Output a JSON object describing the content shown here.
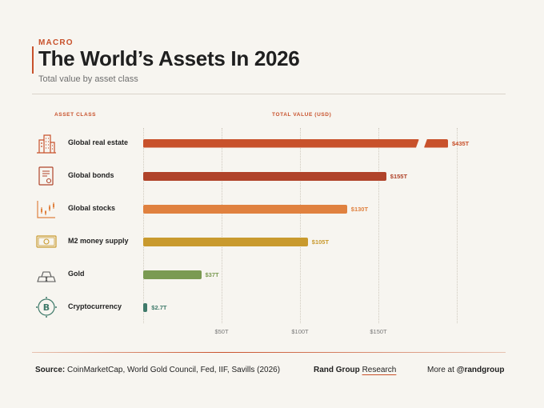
{
  "header": {
    "kicker": "MACRO",
    "title": "The World’s Assets In 2026",
    "subtitle": "Total value by asset class"
  },
  "columns": {
    "asset_class": "ASSET CLASS",
    "total_value": "TOTAL VALUE (USD)"
  },
  "colors": {
    "accent": "#c8512b",
    "text": "#1f1f1f"
  },
  "chart_data": {
    "type": "bar",
    "orientation": "horizontal",
    "title": "The World’s Assets In 2026",
    "subtitle": "Total value by asset class",
    "xlabel": "TOTAL VALUE (USD)",
    "ylabel": "ASSET CLASS",
    "xlim": [
      0,
      200
    ],
    "axis_break": true,
    "grid": true,
    "categories": [
      "Global real estate",
      "Global bonds",
      "Global stocks",
      "M2 money supply",
      "Gold",
      "Cryptocurrency"
    ],
    "values": [
      435,
      155,
      130,
      105,
      37,
      2.7
    ],
    "value_labels": [
      "$435T",
      "$155T",
      "$130T",
      "$105T",
      "$37T",
      "$2.7T"
    ],
    "colors": [
      "#c8512b",
      "#b0432a",
      "#e0813f",
      "#c99a2e",
      "#7a9a52",
      "#3f7a6a"
    ],
    "icons": [
      "buildings-icon",
      "bond-certificate-icon",
      "stock-chart-icon",
      "banknote-icon",
      "gold-bars-icon",
      "bitcoin-icon"
    ],
    "ticks": [
      50,
      100,
      150
    ],
    "tick_labels": [
      "$50T",
      "$100T",
      "$150T"
    ]
  },
  "footer": {
    "source_label": "Source:",
    "source_text": "CoinMarketCap, World Gold Council, Fed, IIF, Savills (2026)",
    "brand_bold": "Rand Group",
    "brand_light": "Research",
    "more_text": "More at",
    "handle": "@randgroup"
  }
}
